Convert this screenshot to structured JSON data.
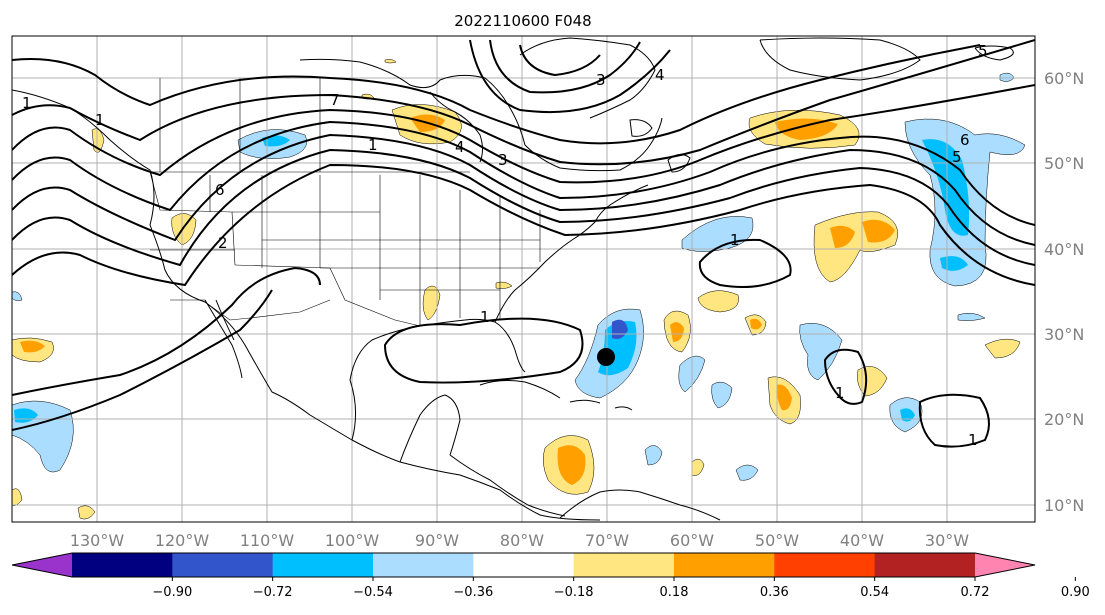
{
  "title": "2022110600 F048",
  "longitude_labels": [
    "130°W",
    "120°W",
    "110°W",
    "100°W",
    "90°W",
    "80°W",
    "70°W",
    "60°W",
    "50°W",
    "40°W",
    "30°W"
  ],
  "latitude_labels": [
    "60°N",
    "50°N",
    "40°N",
    "30°N",
    "20°N",
    "10°N"
  ],
  "colorbar": {
    "tick_labels": [
      "−0.90",
      "−0.72",
      "−0.54",
      "−0.36",
      "−0.18",
      "0.18",
      "0.36",
      "0.54",
      "0.72",
      "0.90"
    ],
    "colors": [
      "#9933cc",
      "#000080",
      "#3355cc",
      "#00bfff",
      "#aaddff",
      "#ffffff",
      "#ffe680",
      "#ffa000",
      "#ff4000",
      "#b22222",
      "#ff85b0"
    ]
  },
  "contour_labels": [
    "1",
    "1",
    "1",
    "2",
    "3",
    "3",
    "4",
    "4",
    "5",
    "5",
    "6",
    "6",
    "7",
    "1",
    "1",
    "1",
    "1"
  ],
  "storm_marker": {
    "lon": -70.5,
    "lat": 27.2
  },
  "colors": {
    "grid": "#b0b0b0",
    "tick_text": "#808080",
    "contour": "#000000"
  }
}
